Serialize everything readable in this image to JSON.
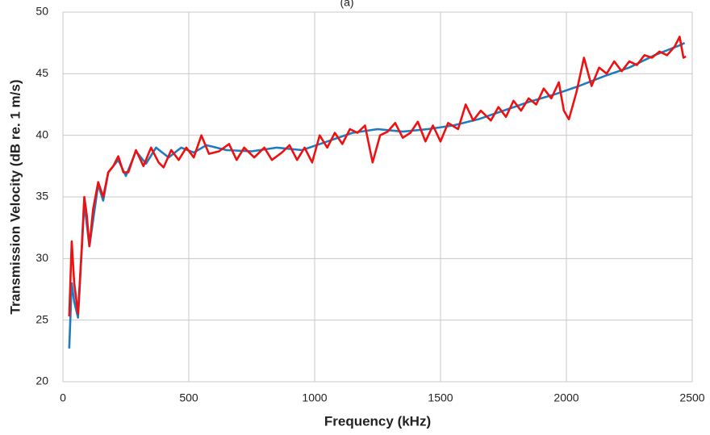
{
  "chart_data": {
    "type": "line",
    "title": "(a)",
    "x_label": "Frequency  (kHz)",
    "y_label": "Transmission Velocity (dB re. 1 m/s)",
    "xlim": [
      0,
      2500
    ],
    "xticks": [
      0,
      500,
      1000,
      1500,
      2000,
      2500
    ],
    "ylim": [
      20,
      50
    ],
    "yticks": [
      20,
      25,
      30,
      35,
      40,
      45,
      50
    ],
    "grid": true,
    "series": [
      {
        "color": "#1f7bc1",
        "x": [
          25,
          35,
          45,
          60,
          85,
          105,
          140,
          160,
          180,
          220,
          250,
          290,
          330,
          370,
          420,
          470,
          520,
          570,
          650,
          750,
          850,
          950,
          1050,
          1150,
          1250,
          1350,
          1450,
          1550,
          1650,
          1750,
          1850,
          1950,
          2050,
          2150,
          2250,
          2350,
          2450,
          2470
        ],
        "values": [
          22.7,
          28,
          26.5,
          25.2,
          34.5,
          31,
          36,
          34.7,
          37,
          38,
          36.7,
          38.7,
          37.7,
          39,
          38.2,
          39,
          38.6,
          39.2,
          38.8,
          38.7,
          39,
          38.8,
          39.5,
          40.2,
          40.5,
          40.3,
          40.5,
          40.8,
          41.3,
          42,
          42.7,
          43.3,
          44,
          44.8,
          45.5,
          46.5,
          47.3,
          47.5
        ]
      },
      {
        "color": "#ee1111",
        "x": [
          25,
          35,
          45,
          60,
          75,
          85,
          95,
          105,
          120,
          140,
          160,
          180,
          200,
          220,
          240,
          260,
          290,
          320,
          350,
          380,
          400,
          430,
          460,
          490,
          520,
          550,
          580,
          620,
          660,
          690,
          720,
          760,
          800,
          830,
          870,
          900,
          930,
          960,
          990,
          1020,
          1050,
          1080,
          1110,
          1140,
          1170,
          1200,
          1230,
          1260,
          1290,
          1320,
          1350,
          1380,
          1410,
          1440,
          1470,
          1500,
          1530,
          1570,
          1600,
          1630,
          1660,
          1700,
          1730,
          1760,
          1790,
          1820,
          1850,
          1880,
          1910,
          1940,
          1970,
          1990,
          2010,
          2040,
          2070,
          2100,
          2130,
          2160,
          2190,
          2220,
          2250,
          2280,
          2310,
          2340,
          2370,
          2400,
          2430,
          2450,
          2465,
          2475
        ],
        "values": [
          25.3,
          31.4,
          28,
          25.5,
          31,
          35,
          33.5,
          31,
          34,
          36.2,
          35,
          37,
          37.5,
          38.3,
          37,
          37,
          38.8,
          37.5,
          39,
          37.8,
          37.4,
          38.8,
          38,
          39,
          38.2,
          40,
          38.5,
          38.7,
          39.3,
          38,
          39,
          38.2,
          39,
          38,
          38.6,
          39.2,
          38,
          39,
          37.8,
          40,
          39,
          40.2,
          39.3,
          40.5,
          40.2,
          40.8,
          37.8,
          40,
          40.3,
          41,
          39.8,
          40.2,
          41.1,
          39.5,
          40.8,
          39.5,
          41,
          40.5,
          42.5,
          41.2,
          42,
          41.2,
          42.3,
          41.5,
          42.8,
          42,
          43,
          42.5,
          43.8,
          43,
          44.3,
          42,
          41.3,
          43.5,
          46.3,
          44,
          45.5,
          45,
          46,
          45.2,
          46,
          45.7,
          46.5,
          46.3,
          46.8,
          46.5,
          47.2,
          48,
          46.3,
          46.4
        ]
      }
    ]
  }
}
